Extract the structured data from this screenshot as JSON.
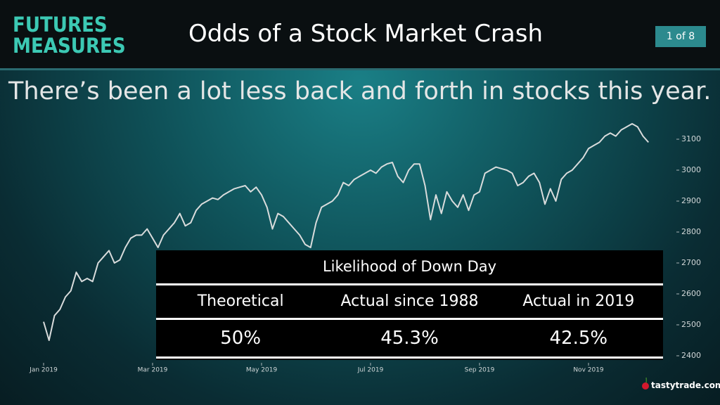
{
  "header": {
    "brand": [
      "FUTURES",
      "MEASURES"
    ],
    "title": "Odds of a Stock Market Crash",
    "page": "1 of 8"
  },
  "subtitle": "There’s been a lot less back and forth in stocks this year.",
  "chart_data": {
    "type": "line",
    "color": "#d9dcdc",
    "categories": [
      "Jan 2019",
      null,
      null,
      null,
      null,
      null,
      null,
      null,
      null,
      null,
      null,
      null,
      null,
      null,
      null,
      null,
      null,
      null,
      null,
      null,
      "Mar 2019",
      null,
      null,
      null,
      null,
      null,
      null,
      null,
      null,
      null,
      null,
      null,
      null,
      null,
      null,
      null,
      null,
      null,
      null,
      null,
      "May 2019",
      null,
      null,
      null,
      null,
      null,
      null,
      null,
      null,
      null,
      null,
      null,
      null,
      null,
      null,
      null,
      null,
      null,
      null,
      null,
      "Jul 2019",
      null,
      null,
      null,
      null,
      null,
      null,
      null,
      null,
      null,
      null,
      null,
      null,
      null,
      null,
      null,
      null,
      null,
      null,
      null,
      "Sep 2019",
      null,
      null,
      null,
      null,
      null,
      null,
      null,
      null,
      null,
      null,
      null,
      null,
      null,
      null,
      null,
      null,
      null,
      null,
      null,
      "Nov 2019",
      null,
      null,
      null,
      null,
      null,
      null,
      null,
      null,
      null,
      null,
      null
    ],
    "values": [
      2510,
      2450,
      2530,
      2550,
      2590,
      2610,
      2670,
      2640,
      2650,
      2640,
      2700,
      2720,
      2740,
      2700,
      2710,
      2750,
      2780,
      2790,
      2790,
      2810,
      2780,
      2750,
      2790,
      2810,
      2830,
      2860,
      2820,
      2830,
      2870,
      2890,
      2900,
      2910,
      2905,
      2920,
      2930,
      2940,
      2945,
      2950,
      2930,
      2945,
      2920,
      2880,
      2810,
      2860,
      2850,
      2830,
      2810,
      2790,
      2760,
      2750,
      2830,
      2880,
      2890,
      2900,
      2920,
      2960,
      2950,
      2970,
      2980,
      2990,
      3000,
      2990,
      3010,
      3020,
      3025,
      2980,
      2960,
      3000,
      3020,
      3020,
      2950,
      2840,
      2920,
      2860,
      2930,
      2900,
      2880,
      2920,
      2870,
      2920,
      2930,
      2990,
      3000,
      3010,
      3005,
      3000,
      2990,
      2950,
      2960,
      2980,
      2990,
      2960,
      2890,
      2940,
      2900,
      2970,
      2990,
      3000,
      3020,
      3040,
      3070,
      3080,
      3090,
      3110,
      3120,
      3110,
      3130,
      3140,
      3150,
      3140,
      3110,
      3090
    ],
    "ylim": [
      2400,
      3200
    ],
    "yticks": [
      2400,
      2500,
      2600,
      2700,
      2800,
      2900,
      3000,
      3100
    ]
  },
  "table": {
    "title": "Likelihood of Down Day",
    "columns": [
      "Theoretical",
      "Actual since 1988",
      "Actual in 2019"
    ],
    "rows": [
      [
        "50%",
        "45.3%",
        "42.5%"
      ]
    ]
  },
  "footer": {
    "logo": "tastytrade.com"
  }
}
